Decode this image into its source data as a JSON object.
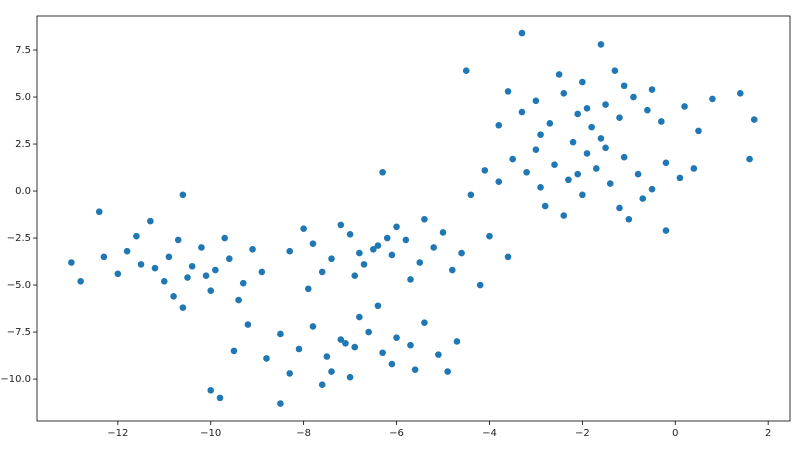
{
  "chart_data": {
    "type": "scatter",
    "color": "#1f77b4",
    "grid": false,
    "xlim": [
      -13.74,
      2.47
    ],
    "ylim": [
      -12.23,
      9.31
    ],
    "xticks": [
      {
        "value": -12,
        "label": "−12"
      },
      {
        "value": -10,
        "label": "−10"
      },
      {
        "value": -8,
        "label": "−8"
      },
      {
        "value": -6,
        "label": "−6"
      },
      {
        "value": -4,
        "label": "−4"
      },
      {
        "value": -2,
        "label": "−2"
      },
      0,
      2
    ],
    "yticks": [
      {
        "value": -10,
        "label": "−10.0"
      },
      {
        "value": -7.5,
        "label": "−7.5"
      },
      {
        "value": -5,
        "label": "−5.0"
      },
      {
        "value": -2.5,
        "label": "−2.5"
      },
      {
        "value": 0,
        "label": "0.0"
      },
      {
        "value": 2.5,
        "label": "2.5"
      },
      {
        "value": 5,
        "label": "5.0"
      },
      {
        "value": 7.5,
        "label": "7.5"
      }
    ],
    "x": [
      -11.8,
      -11.2,
      -10.9,
      -10.5,
      -10.2,
      -9.9,
      -9.6,
      -9.3,
      -10.7,
      -11.5,
      -10.0,
      -9.1,
      -10.4,
      -11.0,
      -12.3,
      -9.7,
      -10.8,
      -11.6,
      -9.4,
      -10.1,
      -12.0,
      -8.9,
      -11.3,
      -12.4,
      -10.6,
      -7.8,
      -7.4,
      -7.0,
      -6.7,
      -6.4,
      -6.1,
      -5.8,
      -5.5,
      -5.2,
      -6.9,
      -7.6,
      -6.0,
      -5.0,
      -8.3,
      -4.8,
      -6.5,
      -7.2,
      -5.7,
      -4.6,
      -8.0,
      -6.2,
      -5.4,
      -4.2,
      -7.9,
      -6.8,
      -8.5,
      -8.1,
      -7.8,
      -7.5,
      -7.2,
      -6.9,
      -6.6,
      -6.3,
      -6.0,
      -5.7,
      -7.4,
      -6.8,
      -5.4,
      -8.8,
      -7.0,
      -6.1,
      -5.1,
      -9.2,
      -7.6,
      -6.4,
      -8.3,
      -5.6,
      -4.7,
      -9.5,
      -7.1,
      -3.0,
      -2.7,
      -2.4,
      -2.1,
      -1.8,
      -1.5,
      -1.2,
      -0.9,
      -0.6,
      -2.9,
      -3.3,
      -2.0,
      -1.1,
      -0.3,
      -3.6,
      -1.6,
      -0.5,
      0.2,
      -2.5,
      -1.9,
      -3.8,
      0.5,
      -1.3,
      -2.2,
      0.8,
      -3.2,
      -2.9,
      -2.6,
      -2.3,
      -2.0,
      -1.7,
      -1.4,
      -1.1,
      -0.8,
      -0.5,
      -3.5,
      -2.8,
      -1.9,
      -1.2,
      -0.2,
      -3.8,
      -2.4,
      0.1,
      -1.5,
      -3.0,
      -0.7,
      0.4,
      -4.1,
      -2.1,
      -1.0,
      -3.3,
      -13.0,
      1.7,
      -8.5,
      1.4,
      -10.0,
      -4.5,
      -1.6,
      -6.3,
      -10.6,
      -4.4,
      -4.0,
      -3.6,
      1.6,
      -4.9,
      -9.8,
      -0.2,
      -12.8
    ],
    "values": [
      -3.2,
      -4.1,
      -3.5,
      -4.6,
      -3.0,
      -4.2,
      -3.6,
      -4.9,
      -2.6,
      -3.9,
      -5.3,
      -3.1,
      -4.0,
      -4.8,
      -3.5,
      -2.5,
      -5.6,
      -2.4,
      -5.8,
      -4.5,
      -4.4,
      -4.3,
      -1.6,
      -1.1,
      -6.2,
      -2.8,
      -3.6,
      -2.3,
      -3.9,
      -2.9,
      -3.4,
      -2.6,
      -3.8,
      -3.0,
      -4.5,
      -4.3,
      -1.9,
      -2.2,
      -3.2,
      -4.2,
      -3.1,
      -1.8,
      -4.7,
      -3.3,
      -2.0,
      -2.5,
      -1.5,
      -5.0,
      -5.2,
      -3.3,
      -7.6,
      -8.4,
      -7.2,
      -8.8,
      -7.9,
      -8.3,
      -7.5,
      -8.6,
      -7.8,
      -8.2,
      -9.6,
      -6.7,
      -7.0,
      -8.9,
      -9.9,
      -9.2,
      -8.7,
      -7.1,
      -10.3,
      -6.1,
      -9.7,
      -9.5,
      -8.0,
      -8.5,
      -8.1,
      4.8,
      3.6,
      5.2,
      4.1,
      3.4,
      4.6,
      3.9,
      5.0,
      4.3,
      3.0,
      4.2,
      5.8,
      5.6,
      3.7,
      5.3,
      2.8,
      5.4,
      4.5,
      6.2,
      4.4,
      3.5,
      3.2,
      6.4,
      2.6,
      4.9,
      1.0,
      0.2,
      1.4,
      0.6,
      -0.2,
      1.2,
      0.4,
      1.8,
      0.9,
      0.1,
      1.7,
      -0.8,
      2.0,
      -0.9,
      1.5,
      0.5,
      -1.3,
      0.7,
      2.3,
      2.2,
      -0.4,
      1.2,
      1.1,
      0.9,
      -1.5,
      8.4,
      -3.8,
      3.8,
      -11.3,
      5.2,
      -10.6,
      6.4,
      7.8,
      1.0,
      -0.2,
      -0.2,
      -2.4,
      -3.5,
      1.7,
      -9.6,
      -11.0,
      -2.1,
      -4.8
    ]
  }
}
